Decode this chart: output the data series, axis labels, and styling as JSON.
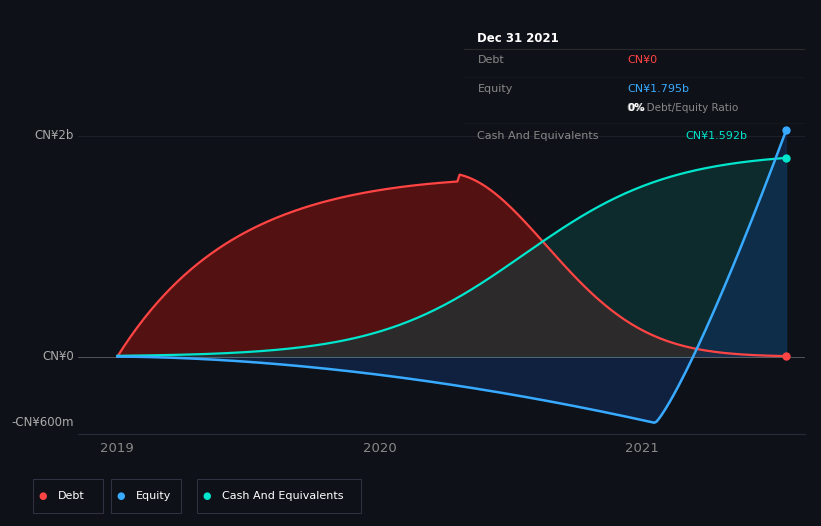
{
  "background_color": "#0e1117",
  "chart_bg": "#0e1117",
  "y_labels": [
    "CN¥2b",
    "CN¥0",
    "-CN¥600m"
  ],
  "y_values": [
    2000,
    0,
    -600
  ],
  "x_ticks": [
    2019,
    2020,
    2021
  ],
  "x_range": [
    2018.85,
    2021.62
  ],
  "y_range": [
    -700,
    2300
  ],
  "debt_color": "#ff4444",
  "equity_color": "#38aaff",
  "cash_color": "#00e5cc",
  "debt_fill": "#6b1111",
  "equity_fill": "#103060",
  "cash_fill": "#0d4040",
  "debt_label": "Debt",
  "equity_label": "Equity",
  "cash_label": "Cash And Equivalents",
  "tooltip_title": "Dec 31 2021",
  "tooltip_debt_label": "Debt",
  "tooltip_debt_val": "CN¥0",
  "tooltip_equity_label": "Equity",
  "tooltip_equity_val": "CN¥1.795b",
  "tooltip_ratio": "0% Debt/Equity Ratio",
  "tooltip_cash_label": "Cash And Equivalents",
  "tooltip_cash_val": "CN¥1.592b",
  "n_points": 300
}
